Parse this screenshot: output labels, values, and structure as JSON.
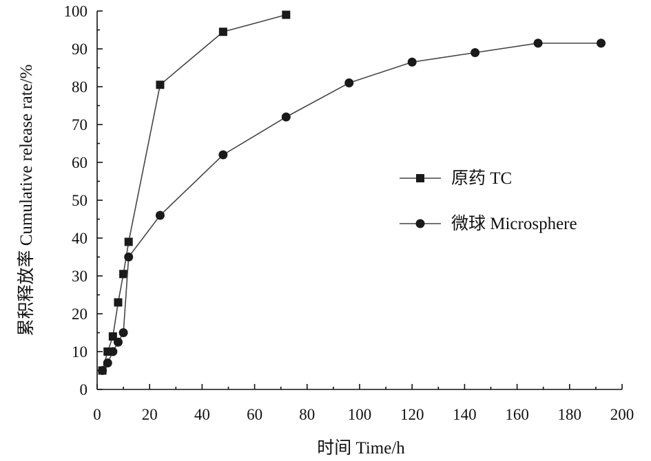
{
  "chart_data": {
    "type": "line",
    "title": "",
    "xlabel": "时间 Time/h",
    "ylabel": "累积释放率 Cumulative release rate/%",
    "xlim": [
      0,
      200
    ],
    "ylim": [
      0,
      100
    ],
    "x_ticks": [
      0,
      20,
      40,
      60,
      80,
      100,
      120,
      140,
      160,
      180,
      200
    ],
    "y_ticks": [
      0,
      10,
      20,
      30,
      40,
      50,
      60,
      70,
      80,
      90,
      100
    ],
    "grid": false,
    "legend_position": "right-middle",
    "series": [
      {
        "name": "原药 TC",
        "marker": "square",
        "x": [
          2,
          4,
          6,
          8,
          10,
          12,
          24,
          48,
          72
        ],
        "y": [
          5,
          10,
          14,
          23,
          30.5,
          39,
          80.5,
          94.5,
          99
        ]
      },
      {
        "name": "微球 Microsphere",
        "marker": "circle",
        "x": [
          2,
          4,
          6,
          8,
          10,
          12,
          24,
          48,
          72,
          96,
          120,
          144,
          168,
          192
        ],
        "y": [
          5,
          7,
          10,
          12.5,
          15,
          35,
          46,
          62,
          72,
          81,
          86.5,
          89,
          91.5,
          91.5
        ]
      }
    ]
  }
}
